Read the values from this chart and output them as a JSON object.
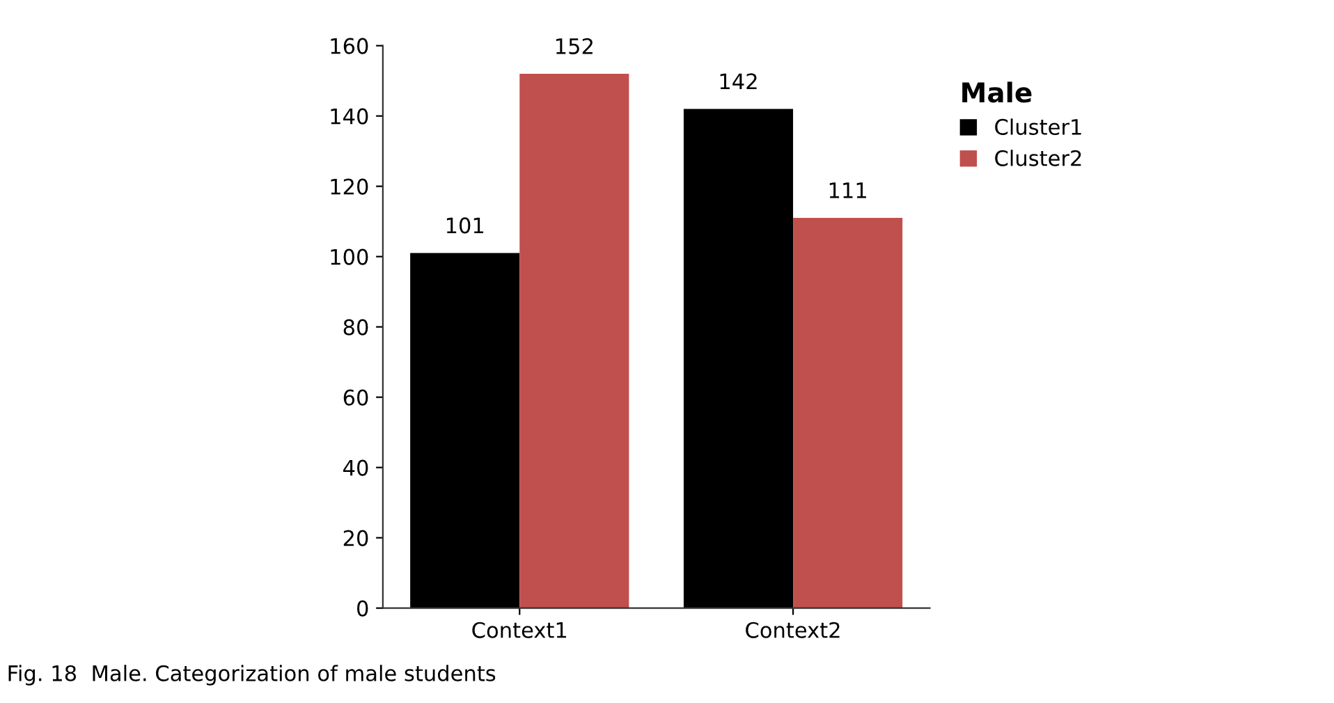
{
  "chart_data": {
    "type": "bar",
    "categories": [
      "Context1",
      "Context2"
    ],
    "series": [
      {
        "name": "Cluster1",
        "color": "#000000",
        "values": [
          101,
          142
        ]
      },
      {
        "name": "Cluster2",
        "color": "#c0504d",
        "values": [
          152,
          111
        ]
      }
    ],
    "ylim": [
      0,
      160
    ],
    "yticks": [
      0,
      20,
      40,
      60,
      80,
      100,
      120,
      140,
      160
    ],
    "data_labels": true,
    "grid": false,
    "legend": "right",
    "legend_title": "Male",
    "annotations": [
      "Fig. 18  Male. Categorization of male students"
    ]
  }
}
